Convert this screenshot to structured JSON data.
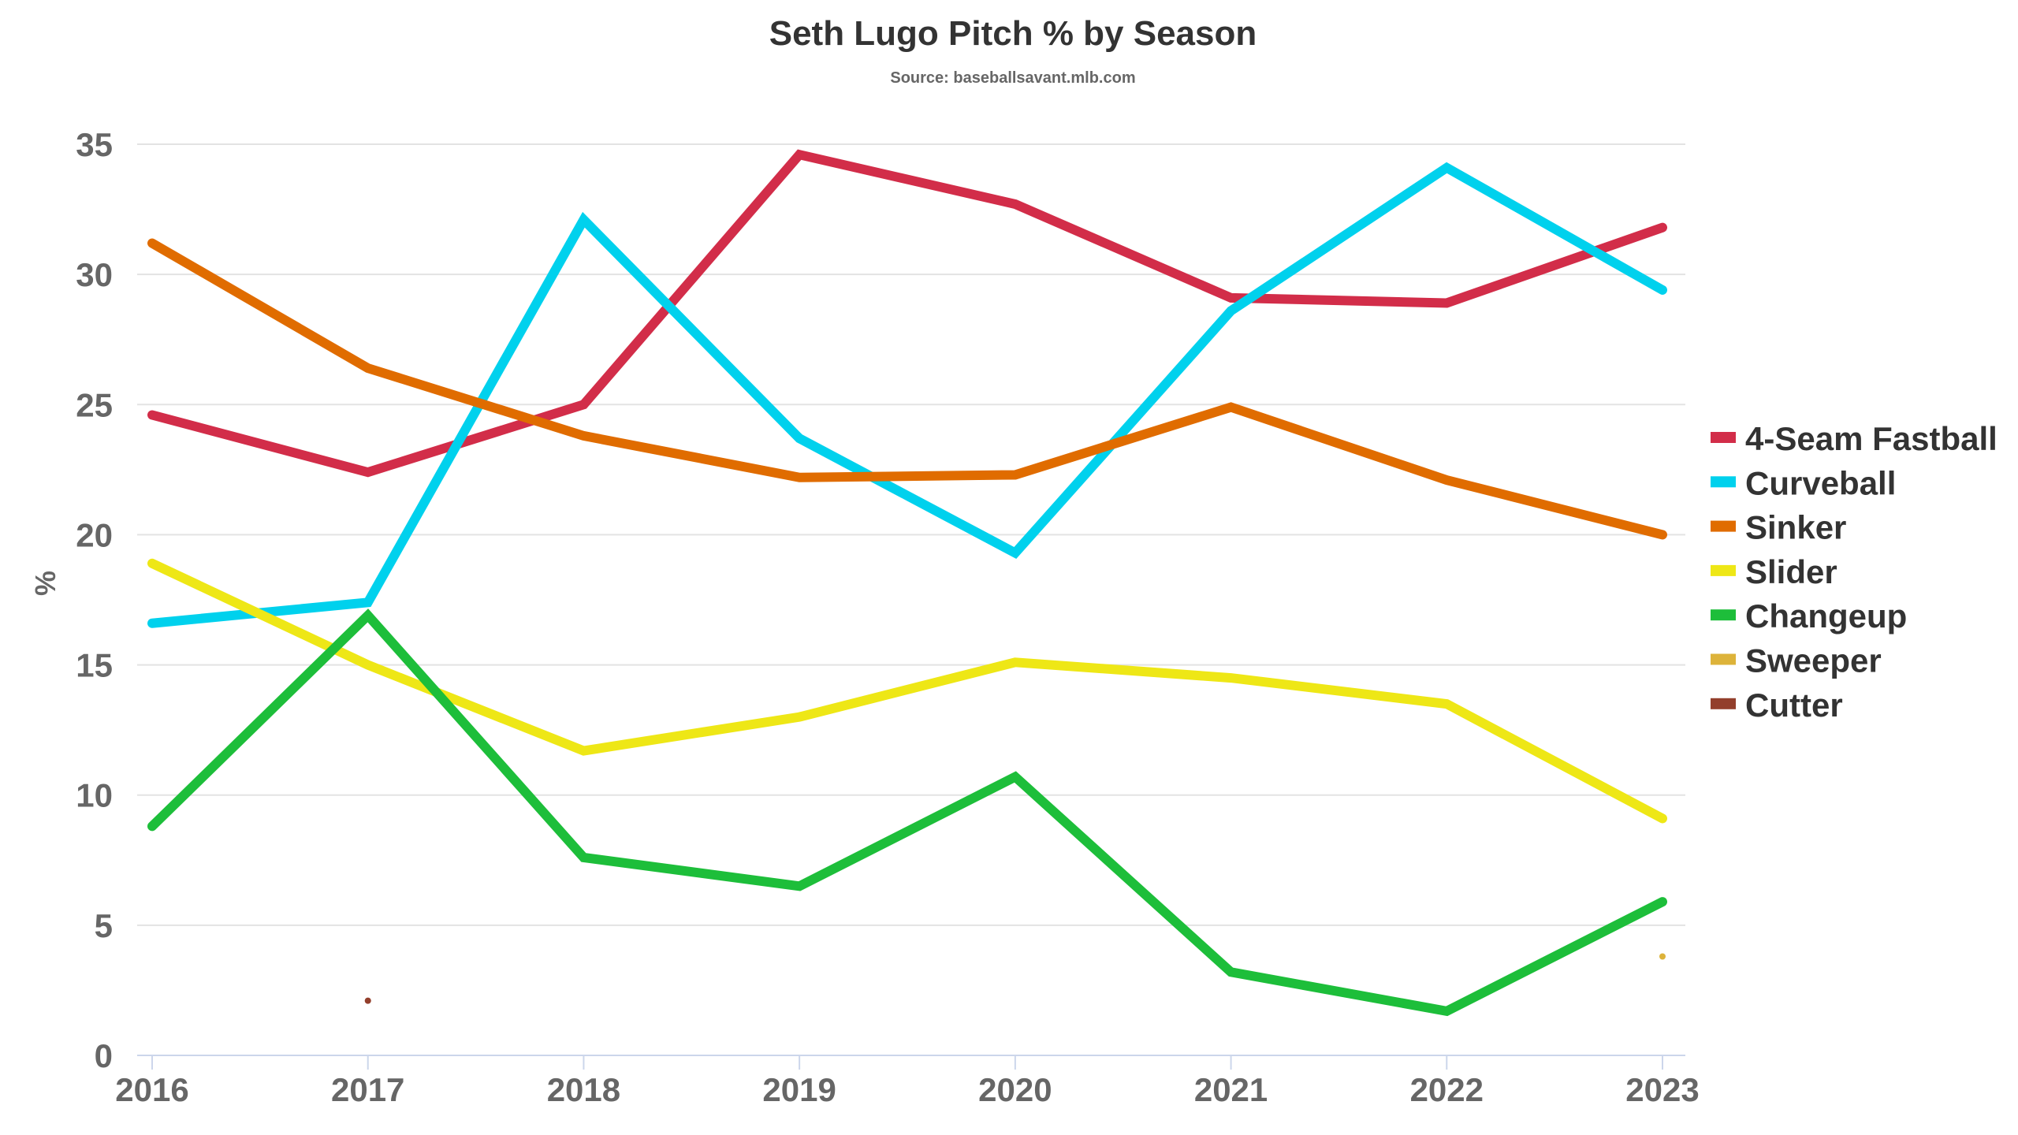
{
  "chart_data": {
    "type": "line",
    "title": "Seth Lugo Pitch % by Season",
    "subtitle": "Source: baseballsavant.mlb.com",
    "xlabel": "",
    "ylabel": "%",
    "x": [
      "2016",
      "2017",
      "2018",
      "2019",
      "2020",
      "2021",
      "2022",
      "2023"
    ],
    "ylim": [
      0,
      35
    ],
    "yticks": [
      "0",
      "5",
      "10",
      "15",
      "20",
      "25",
      "30",
      "35"
    ],
    "grid": true,
    "legend_position": "right",
    "series": [
      {
        "name": "4-Seam Fastball",
        "color": "#D22D49",
        "values": [
          24.6,
          22.4,
          25.0,
          34.6,
          32.7,
          29.1,
          28.9,
          31.8
        ]
      },
      {
        "name": "Curveball",
        "color": "#00D1ED",
        "values": [
          16.6,
          17.4,
          32.1,
          23.7,
          19.3,
          28.6,
          34.1,
          29.4
        ]
      },
      {
        "name": "Sinker",
        "color": "#E06C00",
        "values": [
          31.2,
          26.4,
          23.8,
          22.2,
          22.3,
          24.9,
          22.1,
          20.0
        ]
      },
      {
        "name": "Slider",
        "color": "#EEE716",
        "values": [
          18.9,
          15.0,
          11.7,
          13.0,
          15.1,
          14.5,
          13.5,
          9.1
        ]
      },
      {
        "name": "Changeup",
        "color": "#1DBE3A",
        "values": [
          8.8,
          16.9,
          7.6,
          6.5,
          10.7,
          3.2,
          1.7,
          5.9
        ]
      },
      {
        "name": "Sweeper",
        "color": "#DDB33A",
        "values": [
          null,
          null,
          null,
          null,
          null,
          null,
          null,
          3.8
        ]
      },
      {
        "name": "Cutter",
        "color": "#933F2C",
        "values": [
          null,
          2.1,
          null,
          null,
          null,
          null,
          null,
          null
        ]
      }
    ]
  }
}
